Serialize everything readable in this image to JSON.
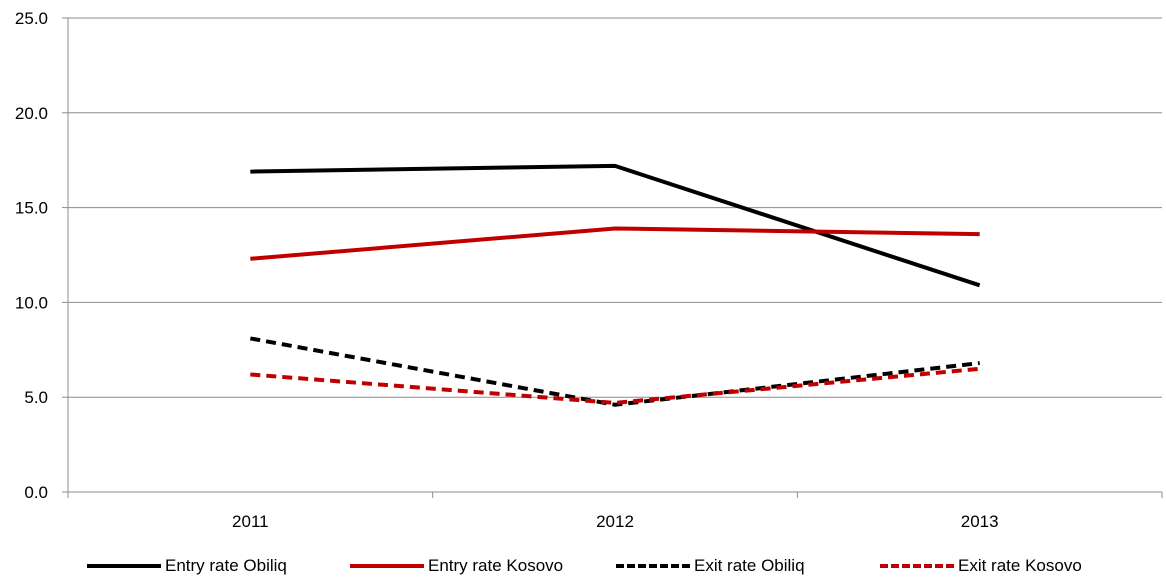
{
  "chart_data": {
    "type": "line",
    "categories": [
      "2011",
      "2012",
      "2013"
    ],
    "ylim": [
      0,
      25
    ],
    "yticks": [
      "0.0",
      "5.0",
      "10.0",
      "15.0",
      "20.0",
      "25.0"
    ],
    "grid": true,
    "legend_position": "bottom",
    "series": [
      {
        "name": "Entry rate Obiliq",
        "values": [
          16.9,
          17.2,
          10.9
        ],
        "color": "#000000",
        "dash": "solid"
      },
      {
        "name": "Entry rate Kosovo",
        "values": [
          12.3,
          13.9,
          13.6
        ],
        "color": "#c00000",
        "dash": "solid"
      },
      {
        "name": "Exit rate Obiliq",
        "values": [
          8.1,
          4.6,
          6.8
        ],
        "color": "#000000",
        "dash": "dashed"
      },
      {
        "name": "Exit rate Kosovo",
        "values": [
          6.2,
          4.7,
          6.5
        ],
        "color": "#c00000",
        "dash": "dashed"
      }
    ]
  }
}
